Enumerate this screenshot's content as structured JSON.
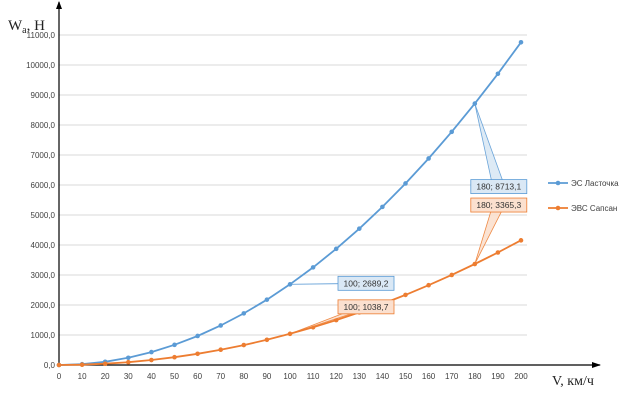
{
  "chart_data": {
    "type": "line",
    "ylabel_main": "W",
    "ylabel_sub": "a",
    "ylabel_unit": ", Н",
    "xlabel": "V, км/ч",
    "x": [
      0,
      10,
      20,
      30,
      40,
      50,
      60,
      70,
      80,
      90,
      100,
      110,
      120,
      130,
      140,
      150,
      160,
      170,
      180,
      190,
      200
    ],
    "x_tick_labels": [
      "0",
      "10",
      "20",
      "30",
      "40",
      "50",
      "60",
      "70",
      "80",
      "90",
      "100",
      "110",
      "120",
      "130",
      "140",
      "150",
      "160",
      "170",
      "180",
      "190",
      "200"
    ],
    "y_ticks": [
      0,
      1000,
      2000,
      3000,
      4000,
      5000,
      6000,
      7000,
      8000,
      9000,
      10000,
      11000
    ],
    "y_tick_labels": [
      "0,0",
      "1000,0",
      "2000,0",
      "3000,0",
      "4000,0",
      "5000,0",
      "6000,0",
      "7000,0",
      "8000,0",
      "9000,0",
      "10000,0",
      "11000,0"
    ],
    "xlim": [
      0,
      200
    ],
    "ylim": [
      0,
      12000
    ],
    "grid": "horizontal",
    "legend_position": "right",
    "series": [
      {
        "name": "ЭС Ласточка",
        "color": "#5B9BD5",
        "values": [
          0,
          27,
          108,
          242,
          430,
          672,
          968,
          1318,
          1721,
          2178,
          2689.2,
          3254,
          3872,
          4545,
          5271,
          6051,
          6885,
          7772,
          8713.1,
          9708,
          10757
        ]
      },
      {
        "name": "ЭВС Сапсан",
        "color": "#ED7D31",
        "values": [
          0,
          10,
          42,
          93,
          166,
          260,
          374,
          509,
          665,
          841,
          1038.7,
          1257,
          1496,
          1755,
          2036,
          2337,
          2659,
          3002,
          3365.3,
          3750,
          4155
        ]
      }
    ],
    "annotations": [
      {
        "series": 0,
        "x": 100,
        "y": 2689.2,
        "text": "100; 2689,2"
      },
      {
        "series": 1,
        "x": 100,
        "y": 1038.7,
        "text": "100; 1038,7"
      },
      {
        "series": 0,
        "x": 180,
        "y": 8713.1,
        "text": "180; 8713,1"
      },
      {
        "series": 1,
        "x": 180,
        "y": 3365.3,
        "text": "180; 3365,3"
      }
    ]
  }
}
